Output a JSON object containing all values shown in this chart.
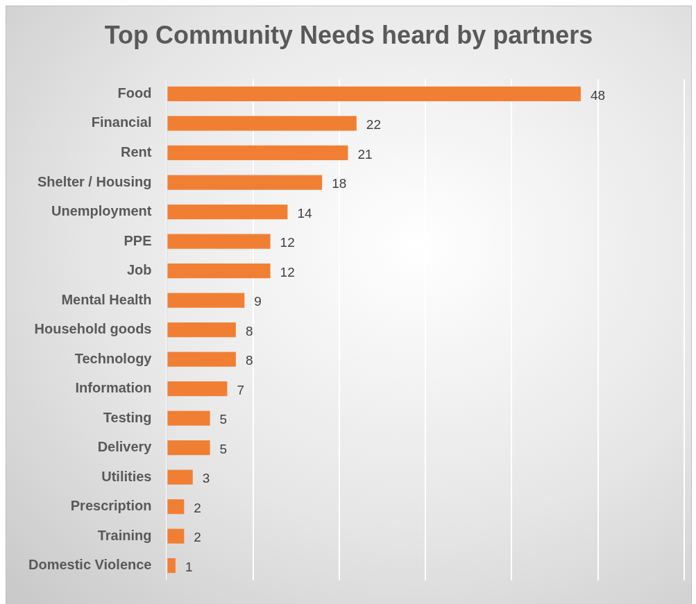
{
  "chart_data": {
    "type": "bar",
    "orientation": "horizontal",
    "title": "Top Community Needs heard by partners",
    "categories": [
      "Food",
      "Financial",
      "Rent",
      "Shelter / Housing",
      "Unemployment",
      "PPE",
      "Job",
      "Mental Health",
      "Household goods",
      "Technology",
      "Information",
      "Testing",
      "Delivery",
      "Utilities",
      "Prescription",
      "Training",
      "Domestic Violence"
    ],
    "values": [
      48,
      22,
      21,
      18,
      14,
      12,
      12,
      9,
      8,
      8,
      7,
      5,
      5,
      3,
      2,
      2,
      1
    ],
    "color": "#f07f34",
    "xlim": [
      0,
      60
    ],
    "xticks": [
      {
        "value": 0,
        "label": null
      },
      {
        "value": 10,
        "label": null
      },
      {
        "value": 20,
        "label": null
      },
      {
        "value": 30,
        "label": null
      },
      {
        "value": 40,
        "label": null
      },
      {
        "value": 50,
        "label": null
      },
      {
        "value": 60,
        "label": null
      }
    ],
    "tick_labels": "y",
    "grid": "x",
    "data_labels": true,
    "legend": false
  }
}
